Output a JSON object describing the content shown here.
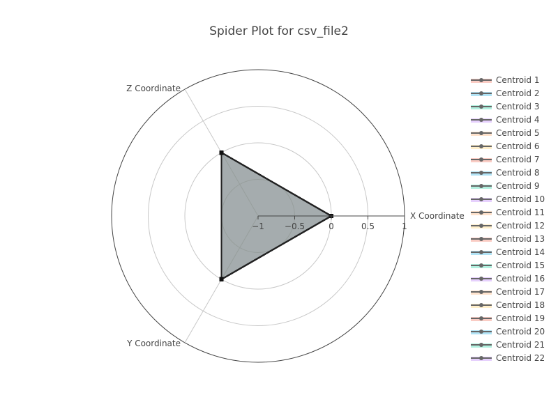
{
  "chart_data": {
    "type": "radar",
    "title": "Spider Plot for csv_file2",
    "axes": [
      "X Coordinate",
      "Y Coordinate",
      "Z Coordinate"
    ],
    "radial_range": [
      -1,
      1
    ],
    "radial_ticks": [
      "−1",
      "−0.5",
      "0",
      "0.5",
      "1"
    ],
    "grid": true,
    "legend_position": "right",
    "series": [
      {
        "name": "Centroid 1",
        "color": "#ef553b",
        "values": [
          0,
          0,
          0
        ]
      },
      {
        "name": "Centroid 2",
        "color": "#00a6e0",
        "values": [
          0,
          0,
          0
        ]
      },
      {
        "name": "Centroid 3",
        "color": "#00cc96",
        "values": [
          0,
          0,
          0
        ]
      },
      {
        "name": "Centroid 4",
        "color": "#ab63fa",
        "values": [
          0,
          0,
          0
        ]
      },
      {
        "name": "Centroid 5",
        "color": "#ffa15a",
        "values": [
          0,
          0,
          0
        ]
      },
      {
        "name": "Centroid 6",
        "color": "#fecb52",
        "values": [
          0,
          0,
          0
        ]
      },
      {
        "name": "Centroid 7",
        "color": "#ef553b",
        "values": [
          0,
          0,
          0
        ]
      },
      {
        "name": "Centroid 8",
        "color": "#00a6e0",
        "values": [
          0,
          0,
          0
        ]
      },
      {
        "name": "Centroid 9",
        "color": "#00cc96",
        "values": [
          0,
          0,
          0
        ]
      },
      {
        "name": "Centroid 10",
        "color": "#ab63fa",
        "values": [
          0,
          0,
          0
        ]
      },
      {
        "name": "Centroid 11",
        "color": "#ffa15a",
        "values": [
          0,
          0,
          0
        ]
      },
      {
        "name": "Centroid 12",
        "color": "#fecb52",
        "values": [
          0,
          0,
          0
        ]
      },
      {
        "name": "Centroid 13",
        "color": "#ef553b",
        "values": [
          0,
          0,
          0
        ]
      },
      {
        "name": "Centroid 14",
        "color": "#00a6e0",
        "values": [
          0,
          0,
          0
        ]
      },
      {
        "name": "Centroid 15",
        "color": "#00cc96",
        "values": [
          0,
          0,
          0
        ]
      },
      {
        "name": "Centroid 16",
        "color": "#ab63fa",
        "values": [
          0,
          0,
          0
        ]
      },
      {
        "name": "Centroid 17",
        "color": "#ffa15a",
        "values": [
          0,
          0,
          0
        ]
      },
      {
        "name": "Centroid 18",
        "color": "#fecb52",
        "values": [
          0,
          0,
          0
        ]
      },
      {
        "name": "Centroid 19",
        "color": "#ef553b",
        "values": [
          0,
          0,
          0
        ]
      },
      {
        "name": "Centroid 20",
        "color": "#00a6e0",
        "values": [
          0,
          0,
          0
        ]
      },
      {
        "name": "Centroid 21",
        "color": "#00cc96",
        "values": [
          0,
          0,
          0
        ]
      },
      {
        "name": "Centroid 22",
        "color": "#ab63fa",
        "values": [
          0,
          0,
          0
        ]
      }
    ]
  }
}
